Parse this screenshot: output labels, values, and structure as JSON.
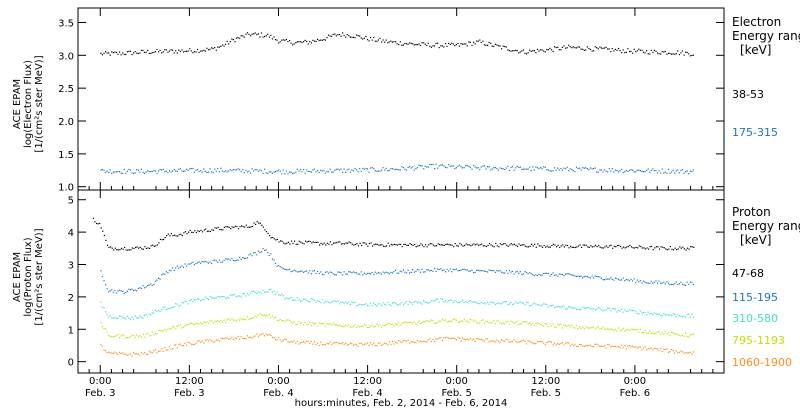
{
  "chart_data": [
    {
      "type": "scatter",
      "panel": "electron",
      "ylabel_lines": [
        "ACE EPAM",
        "log(Electron Flux)",
        "[1/(cm²s ster MeV)]"
      ],
      "yticks": [
        1.0,
        1.5,
        2.0,
        2.5,
        3.0,
        3.5
      ],
      "ytick_labels": [
        "1.0",
        "1.5",
        "2.0",
        "2.5",
        "3.0",
        "3.5"
      ],
      "ylim": [
        0.95,
        3.72
      ],
      "legend_title": [
        "Electron",
        "Energy ranges",
        "[keV]"
      ],
      "series": [
        {
          "name": "38-53",
          "color": "#000000",
          "x": [
            0,
            6,
            12,
            18,
            24,
            30,
            33,
            36,
            40,
            45,
            48,
            52,
            56,
            60,
            64,
            68,
            72,
            78,
            84,
            90,
            96,
            102,
            108,
            114,
            120,
            126,
            132,
            138,
            144,
            150,
            156,
            160
          ],
          "values": [
            3.02,
            3.03,
            3.05,
            3.06,
            3.07,
            3.09,
            3.15,
            3.24,
            3.32,
            3.3,
            3.22,
            3.19,
            3.2,
            3.25,
            3.32,
            3.3,
            3.25,
            3.2,
            3.17,
            3.15,
            3.15,
            3.2,
            3.12,
            3.05,
            3.08,
            3.12,
            3.1,
            3.08,
            3.06,
            3.05,
            3.04,
            3.02
          ]
        },
        {
          "name": "175-315",
          "color": "#1874cd",
          "x": [
            0,
            10,
            20,
            30,
            40,
            50,
            60,
            70,
            80,
            90,
            100,
            110,
            120,
            130,
            140,
            150,
            160
          ],
          "values": [
            1.24,
            1.23,
            1.24,
            1.25,
            1.24,
            1.23,
            1.24,
            1.25,
            1.27,
            1.31,
            1.29,
            1.28,
            1.27,
            1.26,
            1.25,
            1.24,
            1.23
          ]
        }
      ]
    },
    {
      "type": "scatter",
      "panel": "proton",
      "ylabel_lines": [
        "ACE EPAM",
        "log(Proton Flux)",
        "[1/(cm²s ster MeV)]"
      ],
      "yticks": [
        0,
        1,
        2,
        3,
        4,
        5
      ],
      "ytick_labels": [
        "0",
        "1",
        "2",
        "3",
        "4",
        "5"
      ],
      "ylim": [
        -0.35,
        5.3
      ],
      "legend_title": [
        "Proton",
        "Energy ranges",
        "[keV]"
      ],
      "series": [
        {
          "name": "47-68",
          "color": "#000000",
          "x": [
            -2,
            0,
            2,
            10,
            14,
            18,
            20,
            24,
            28,
            32,
            36,
            40,
            42,
            44,
            46,
            48,
            50,
            52,
            54,
            58,
            62,
            66,
            70,
            80,
            90,
            100,
            110,
            120,
            130,
            140,
            150,
            160
          ],
          "values": [
            4.4,
            4.2,
            3.5,
            3.5,
            3.55,
            3.9,
            3.9,
            4.0,
            4.05,
            4.1,
            4.15,
            4.17,
            4.3,
            4.15,
            3.85,
            3.72,
            3.68,
            3.68,
            3.67,
            3.65,
            3.65,
            3.65,
            3.62,
            3.6,
            3.6,
            3.6,
            3.6,
            3.58,
            3.55,
            3.55,
            3.5,
            3.5
          ]
        },
        {
          "name": "115-195",
          "color": "#1874cd",
          "x": [
            0,
            2,
            6,
            10,
            14,
            18,
            22,
            26,
            32,
            38,
            42,
            44,
            46,
            48,
            50,
            54,
            58,
            62,
            66,
            70,
            76,
            82,
            88,
            94,
            100,
            106,
            112,
            118,
            124,
            130,
            136,
            142,
            148,
            154,
            160
          ],
          "values": [
            2.8,
            2.2,
            2.15,
            2.25,
            2.4,
            2.8,
            2.95,
            3.05,
            3.1,
            3.2,
            3.35,
            3.5,
            3.25,
            2.9,
            2.85,
            2.8,
            2.75,
            2.72,
            2.72,
            2.72,
            2.75,
            2.78,
            2.82,
            2.83,
            2.8,
            2.78,
            2.75,
            2.7,
            2.68,
            2.62,
            2.58,
            2.52,
            2.45,
            2.42,
            2.4
          ]
        },
        {
          "name": "310-580",
          "color": "#40e0d0",
          "x": [
            0,
            2,
            8,
            12,
            16,
            22,
            28,
            34,
            38,
            42,
            46,
            50,
            56,
            62,
            68,
            74,
            80,
            86,
            92,
            98,
            104,
            110,
            116,
            122,
            128,
            134,
            140,
            146,
            152,
            160
          ],
          "values": [
            1.8,
            1.4,
            1.35,
            1.4,
            1.6,
            1.8,
            1.95,
            2.0,
            2.05,
            2.15,
            2.2,
            1.95,
            1.9,
            1.85,
            1.78,
            1.75,
            1.8,
            1.82,
            1.9,
            1.85,
            1.83,
            1.8,
            1.78,
            1.7,
            1.65,
            1.62,
            1.58,
            1.52,
            1.45,
            1.4
          ]
        },
        {
          "name": "795-1193",
          "color": "#c0e000",
          "x": [
            0,
            2,
            8,
            12,
            16,
            22,
            28,
            34,
            40,
            44,
            48,
            52,
            58,
            64,
            70,
            76,
            82,
            88,
            94,
            100,
            106,
            112,
            118,
            124,
            130,
            136,
            142,
            148,
            154,
            160
          ],
          "values": [
            1.2,
            0.8,
            0.78,
            0.8,
            0.95,
            1.1,
            1.2,
            1.28,
            1.35,
            1.48,
            1.3,
            1.2,
            1.15,
            1.12,
            1.1,
            1.12,
            1.18,
            1.22,
            1.28,
            1.25,
            1.22,
            1.2,
            1.15,
            1.1,
            1.05,
            1.02,
            0.98,
            0.92,
            0.85,
            0.8
          ]
        },
        {
          "name": "1060-1900",
          "color": "#ff8c1a",
          "x": [
            0,
            2,
            8,
            12,
            16,
            22,
            28,
            34,
            40,
            44,
            48,
            52,
            58,
            64,
            70,
            76,
            82,
            88,
            94,
            100,
            106,
            112,
            118,
            124,
            130,
            136,
            142,
            148,
            154,
            160
          ],
          "values": [
            0.5,
            0.25,
            0.22,
            0.25,
            0.35,
            0.52,
            0.62,
            0.7,
            0.75,
            0.85,
            0.68,
            0.6,
            0.56,
            0.54,
            0.52,
            0.55,
            0.62,
            0.65,
            0.72,
            0.68,
            0.65,
            0.62,
            0.58,
            0.55,
            0.5,
            0.48,
            0.45,
            0.4,
            0.32,
            0.27
          ]
        }
      ]
    }
  ],
  "x_axis": {
    "xlabel": "hours:minutes, Feb.  2, 2014 - Feb.  6, 2014",
    "xlim": [
      -6,
      168
    ],
    "ticks": [
      {
        "x": 0,
        "time": "0:00",
        "date": "Feb. 3"
      },
      {
        "x": 24,
        "time": "12:00",
        "date": "Feb. 3"
      },
      {
        "x": 48,
        "time": "0:00",
        "date": "Feb. 4"
      },
      {
        "x": 72,
        "time": "12:00",
        "date": "Feb. 4"
      },
      {
        "x": 96,
        "time": "0:00",
        "date": "Feb. 5"
      },
      {
        "x": 120,
        "time": "12:00",
        "date": "Feb. 5"
      },
      {
        "x": 144,
        "time": "0:00",
        "date": "Feb. 6"
      }
    ]
  }
}
